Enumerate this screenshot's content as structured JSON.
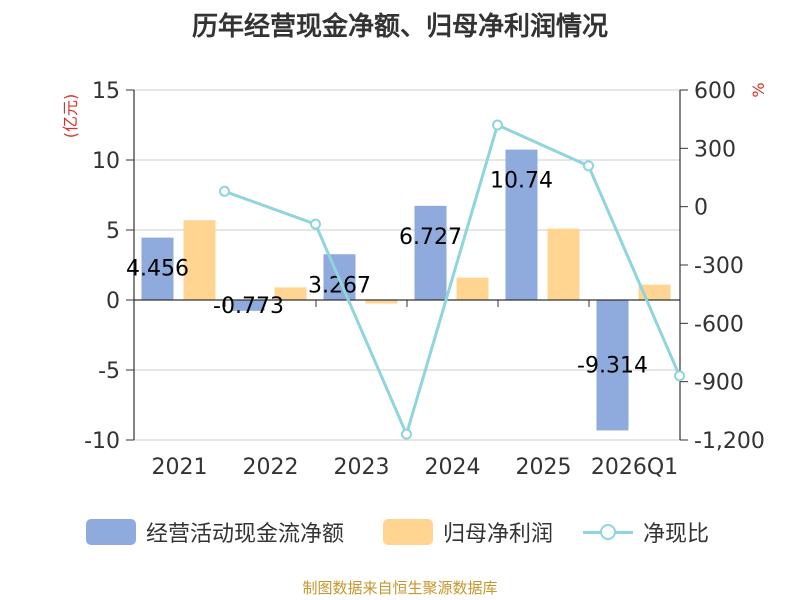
{
  "chart_data": {
    "type": "bar",
    "title": "历年经营现金净额、归母净利润情况",
    "categories": [
      "2021",
      "2022",
      "2023",
      "2024",
      "2025",
      "2026Q1"
    ],
    "left_axis": {
      "label": "(亿元)",
      "ylim": [
        -10,
        15
      ],
      "ticks": [
        "15",
        "10",
        "5",
        "0",
        "-5",
        "-10"
      ],
      "tick_values": [
        15,
        10,
        5,
        0,
        -5,
        -10
      ]
    },
    "right_axis": {
      "label": "%",
      "ylim": [
        -1200,
        600
      ],
      "ticks": [
        "600",
        "300",
        "0",
        "-300",
        "-600",
        "-900",
        "-1,200"
      ],
      "tick_values": [
        600,
        300,
        0,
        -300,
        -600,
        -900,
        -1200
      ]
    },
    "series": [
      {
        "name": "经营活动现金流净额",
        "type": "bar",
        "axis": "left",
        "color": "#8faadc",
        "values": [
          4.456,
          -0.773,
          3.267,
          6.727,
          10.74,
          -9.314
        ],
        "labels": [
          "4.456",
          "-0.773",
          "3.267",
          "6.727",
          "10.74",
          "-9.314"
        ]
      },
      {
        "name": "归母净利润",
        "type": "bar",
        "axis": "left",
        "color": "#ffd591",
        "values": [
          5.7,
          0.9,
          -0.25,
          1.6,
          5.1,
          1.1
        ]
      },
      {
        "name": "净现比",
        "type": "line",
        "axis": "right",
        "color": "#8ed5dc",
        "values": [
          79,
          -90,
          -1170,
          420,
          210,
          -870
        ]
      }
    ]
  },
  "legend": {
    "items": [
      {
        "label": "经营活动现金流净额",
        "color": "#8faadc"
      },
      {
        "label": "归母净利润",
        "color": "#ffd591"
      },
      {
        "label": "净现比",
        "color": "#8ed5dc"
      }
    ]
  },
  "source": "制图数据来自恒生聚源数据库",
  "colors": {
    "axis_label": "#d9302b",
    "text": "#333333",
    "grid": "#cccccc"
  }
}
